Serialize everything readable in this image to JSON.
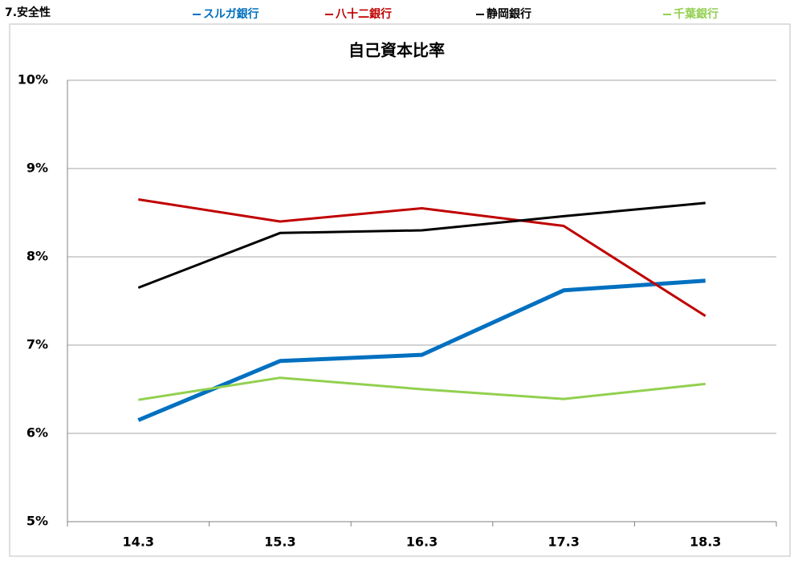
{
  "header": "7.安全性",
  "chart_data": {
    "type": "line",
    "title": "自己資本比率",
    "categories": [
      "14.3",
      "15.3",
      "16.3",
      "17.3",
      "18.3"
    ],
    "series": [
      {
        "name": "スルガ銀行",
        "color": "#0070c0",
        "line_width": 5,
        "values": [
          6.15,
          6.82,
          6.89,
          7.62,
          7.73
        ]
      },
      {
        "name": "八十二銀行",
        "color": "#c00000",
        "line_width": 3,
        "values": [
          8.65,
          8.4,
          8.55,
          8.35,
          7.33
        ]
      },
      {
        "name": "静岡銀行",
        "color": "#000000",
        "line_width": 3,
        "values": [
          7.65,
          8.27,
          8.3,
          8.46,
          8.61
        ]
      },
      {
        "name": "千葉銀行",
        "color": "#92d050",
        "line_width": 3,
        "values": [
          6.38,
          6.63,
          6.5,
          6.39,
          6.56
        ]
      }
    ],
    "ylim": [
      5,
      10
    ],
    "yticks": [
      {
        "value": 5,
        "label": "5%"
      },
      {
        "value": 6,
        "label": "6%"
      },
      {
        "value": 7,
        "label": "7%"
      },
      {
        "value": 8,
        "label": "8%"
      },
      {
        "value": 9,
        "label": "9%"
      },
      {
        "value": 10,
        "label": "10%"
      }
    ],
    "grid": true
  }
}
